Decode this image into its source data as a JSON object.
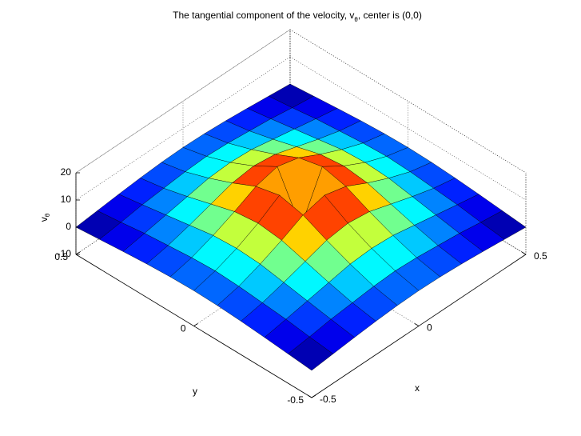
{
  "chart_data": {
    "type": "surface",
    "title": [
      "The tangential component of the velocity, v",
      "θ",
      ", center is (0,0)"
    ],
    "xlabel": "x",
    "ylabel": "y",
    "zlabel": [
      "v",
      "θ"
    ],
    "x": [
      -0.5,
      -0.4,
      -0.3,
      -0.2,
      -0.1,
      0,
      0.1,
      0.2,
      0.3,
      0.4,
      0.5
    ],
    "y": [
      -0.5,
      -0.4,
      -0.3,
      -0.2,
      -0.1,
      0,
      0.1,
      0.2,
      0.3,
      0.4,
      0.5
    ],
    "z": [
      [
        0,
        0.8,
        1.6,
        2.3,
        2.8,
        3,
        2.8,
        2.3,
        1.6,
        0.8,
        0
      ],
      [
        0.8,
        1.8,
        3,
        3.8,
        4.6,
        5,
        4.6,
        3.8,
        3,
        1.8,
        0.8
      ],
      [
        1.6,
        3,
        4.5,
        6,
        7.5,
        8,
        7.5,
        6,
        4.5,
        3,
        1.6
      ],
      [
        2.3,
        3.8,
        6,
        8.5,
        11,
        12,
        11,
        8.5,
        6,
        3.8,
        2.3
      ],
      [
        2.8,
        4.6,
        7.5,
        11,
        15,
        17,
        15,
        11,
        7.5,
        4.6,
        2.8
      ],
      [
        3,
        5,
        8,
        12,
        17,
        0,
        17,
        12,
        8,
        5,
        3
      ],
      [
        2.8,
        4.6,
        7.5,
        11,
        15,
        17,
        15,
        11,
        7.5,
        4.6,
        2.8
      ],
      [
        2.3,
        3.8,
        6,
        8.5,
        11,
        12,
        11,
        8.5,
        6,
        3.8,
        2.3
      ],
      [
        1.6,
        3,
        4.5,
        6,
        7.5,
        8,
        7.5,
        6,
        4.5,
        3,
        1.6
      ],
      [
        0.8,
        1.8,
        3,
        3.8,
        4.6,
        5,
        4.6,
        3.8,
        3,
        1.8,
        0.8
      ],
      [
        0,
        0.8,
        1.6,
        2.3,
        2.8,
        3,
        2.8,
        2.3,
        1.6,
        0.8,
        0
      ]
    ],
    "colormap": "jet",
    "xlim": [
      -0.5,
      0.5
    ],
    "ylim": [
      -0.5,
      0.5
    ],
    "zlim": [
      -10,
      20
    ],
    "xticks": [
      -0.5,
      0,
      0.5
    ],
    "yticks": [
      -0.5,
      0,
      0.5
    ],
    "zticks": [
      -10,
      0,
      10,
      20
    ],
    "grid": true
  }
}
